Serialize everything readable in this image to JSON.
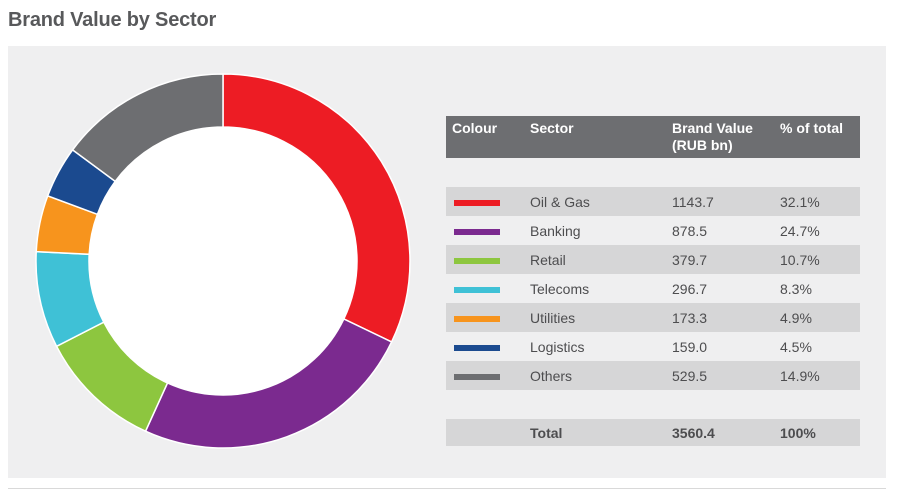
{
  "page": {
    "title": "Brand Value by Sector"
  },
  "table": {
    "headers": {
      "colour": "Colour",
      "sector": "Sector",
      "value_line1": "Brand Value",
      "value_line2": "(RUB bn)",
      "percent": "% of total"
    },
    "rows": [
      {
        "sector": "Oil & Gas",
        "value": "1143.7",
        "percent": "32.1%",
        "color": "#ed1c24"
      },
      {
        "sector": "Banking",
        "value": "878.5",
        "percent": "24.7%",
        "color": "#7b2a8f"
      },
      {
        "sector": "Retail",
        "value": "379.7",
        "percent": "10.7%",
        "color": "#8dc63f"
      },
      {
        "sector": "Telecoms",
        "value": "296.7",
        "percent": "8.3%",
        "color": "#3fc1d6"
      },
      {
        "sector": "Utilities",
        "value": "173.3",
        "percent": "4.9%",
        "color": "#f7941d"
      },
      {
        "sector": "Logistics",
        "value": "159.0",
        "percent": "4.5%",
        "color": "#1b4a8f"
      },
      {
        "sector": "Others",
        "value": "529.5",
        "percent": "14.9%",
        "color": "#6d6e71"
      }
    ],
    "total": {
      "label": "Total",
      "value": "3560.4",
      "percent": "100%"
    }
  },
  "chart_data": {
    "type": "pie",
    "donut": true,
    "title": "Brand Value by Sector",
    "unit": "RUB bn",
    "categories": [
      "Oil & Gas",
      "Banking",
      "Retail",
      "Telecoms",
      "Utilities",
      "Logistics",
      "Others"
    ],
    "values": [
      1143.7,
      878.5,
      379.7,
      296.7,
      173.3,
      159.0,
      529.5
    ],
    "colors": [
      "#ed1c24",
      "#7b2a8f",
      "#8dc63f",
      "#3fc1d6",
      "#f7941d",
      "#1b4a8f",
      "#6d6e71"
    ],
    "legend_placement": "right"
  }
}
